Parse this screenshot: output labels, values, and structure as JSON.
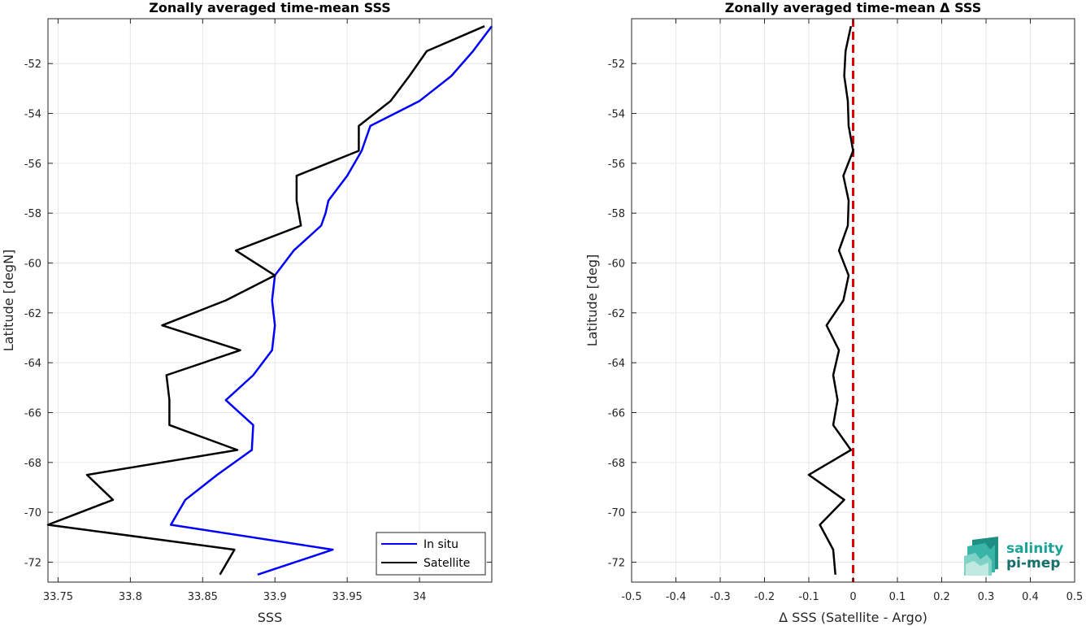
{
  "chart_data": [
    {
      "type": "line",
      "title": "Zonally averaged time-mean SSS",
      "xlabel": "SSS",
      "ylabel": "Latitude [degN]",
      "xlim": [
        33.743,
        34.05
      ],
      "ylim": [
        -72.8,
        -50.2
      ],
      "xticks": [
        33.75,
        33.8,
        33.85,
        33.9,
        33.95,
        34
      ],
      "xtick_labels": [
        "33.75",
        "33.8",
        "33.85",
        "33.9",
        "33.95",
        "34"
      ],
      "yticks": [
        -72,
        -70,
        -68,
        -66,
        -64,
        -62,
        -60,
        -58,
        -56,
        -54,
        -52
      ],
      "ytick_labels": [
        "-72",
        "-70",
        "-68",
        "-66",
        "-64",
        "-62",
        "-60",
        "-58",
        "-56",
        "-54",
        "-52"
      ],
      "grid": true,
      "legend": "bottom-right",
      "series": [
        {
          "name": "In situ",
          "color": "#0000ff",
          "x": [
            34.05,
            34.037,
            34.022,
            34.0,
            33.966,
            33.96,
            33.95,
            33.937,
            33.935,
            33.932,
            33.913,
            33.9,
            33.898,
            33.9,
            33.898,
            33.885,
            33.866,
            33.885,
            33.884,
            33.86,
            33.838,
            33.828,
            33.94,
            33.888
          ],
          "y": [
            -50.5,
            -51.5,
            -52.5,
            -53.5,
            -54.5,
            -55.5,
            -56.5,
            -57.5,
            -58.0,
            -58.5,
            -59.5,
            -60.5,
            -61.5,
            -62.5,
            -63.5,
            -64.5,
            -65.5,
            -66.5,
            -67.5,
            -68.5,
            -69.5,
            -70.5,
            -71.5,
            -72.5
          ]
        },
        {
          "name": "Satellite",
          "color": "#000000",
          "x": [
            34.045,
            34.005,
            33.993,
            33.98,
            33.958,
            33.958,
            33.915,
            33.915,
            33.918,
            33.873,
            33.9,
            33.866,
            33.822,
            33.876,
            33.825,
            33.827,
            33.827,
            33.874,
            33.77,
            33.788,
            33.743,
            33.872,
            33.862
          ],
          "y": [
            -50.5,
            -51.5,
            -52.5,
            -53.5,
            -54.5,
            -55.5,
            -56.5,
            -57.5,
            -58.5,
            -59.5,
            -60.5,
            -61.5,
            -62.5,
            -63.5,
            -64.5,
            -65.5,
            -66.5,
            -67.5,
            -68.5,
            -69.5,
            -70.5,
            -71.5,
            -72.5
          ]
        }
      ]
    },
    {
      "type": "line",
      "title": "Zonally averaged time-mean Δ SSS",
      "xlabel": "Δ SSS (Satellite - Argo)",
      "ylabel": "Latitude [deg]",
      "xlim": [
        -0.5,
        0.5
      ],
      "ylim": [
        -72.8,
        -50.2
      ],
      "xticks": [
        -0.5,
        -0.4,
        -0.3,
        -0.2,
        -0.1,
        0,
        0.1,
        0.2,
        0.3,
        0.4,
        0.5
      ],
      "xtick_labels": [
        "-0.5",
        "-0.4",
        "-0.3",
        "-0.2",
        "-0.1",
        "0",
        "0.1",
        "0.2",
        "0.3",
        "0.4",
        "0.5"
      ],
      "yticks": [
        -72,
        -70,
        -68,
        -66,
        -64,
        -62,
        -60,
        -58,
        -56,
        -54,
        -52
      ],
      "ytick_labels": [
        "-72",
        "-70",
        "-68",
        "-66",
        "-64",
        "-62",
        "-60",
        "-58",
        "-56",
        "-54",
        "-52"
      ],
      "grid": true,
      "reference_line": {
        "x": 0,
        "color": "#e00000",
        "style": "dashed"
      },
      "series": [
        {
          "name": "",
          "color": "#000000",
          "x": [
            -0.005,
            -0.017,
            -0.02,
            -0.012,
            -0.01,
            0.0,
            -0.022,
            -0.01,
            -0.012,
            -0.032,
            -0.01,
            -0.022,
            -0.06,
            -0.032,
            -0.045,
            -0.035,
            -0.045,
            -0.005,
            -0.1,
            -0.02,
            -0.075,
            -0.045,
            -0.04
          ],
          "y": [
            -50.5,
            -51.5,
            -52.5,
            -53.5,
            -54.5,
            -55.5,
            -56.5,
            -57.5,
            -58.5,
            -59.5,
            -60.5,
            -61.5,
            -62.5,
            -63.5,
            -64.5,
            -65.5,
            -66.5,
            -67.5,
            -68.5,
            -69.5,
            -70.5,
            -71.5,
            -72.5
          ]
        }
      ]
    }
  ],
  "logo": {
    "line1": "salinity",
    "line2": "pi-mep",
    "color1": "#1aa396",
    "color2": "#156f6a"
  }
}
